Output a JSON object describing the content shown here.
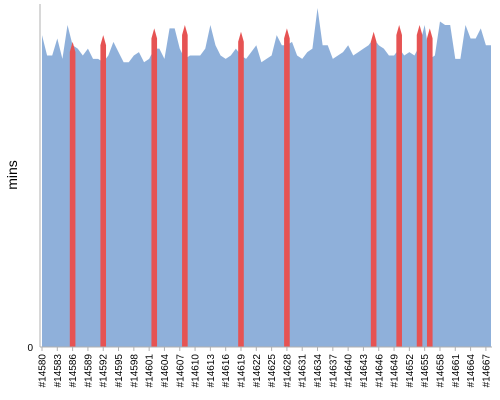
{
  "chart_data": {
    "type": "area",
    "title": "",
    "xlabel": "",
    "ylabel": "mins",
    "ylim": [
      0,
      100
    ],
    "y_ticks": [
      "0"
    ],
    "grid": false,
    "legend": "none",
    "x_first": 14580,
    "x_last": 14668,
    "x_tick_labels": [
      "#14580",
      "#14583",
      "#14586",
      "#14589",
      "#14592",
      "#14595",
      "#14598",
      "#14601",
      "#14604",
      "#14607",
      "#14610",
      "#14613",
      "#14616",
      "#14619",
      "#14622",
      "#14625",
      "#14628",
      "#14631",
      "#14634",
      "#14637",
      "#14640",
      "#14643",
      "#14646",
      "#14649",
      "#14652",
      "#14655",
      "#14658",
      "#14661",
      "#14664",
      "#14667"
    ],
    "series": [
      {
        "color": "#8fb0da",
        "x": [
          14580,
          14581,
          14582,
          14583,
          14584,
          14585,
          14586,
          14587,
          14588,
          14589,
          14590,
          14591,
          14592,
          14593,
          14594,
          14595,
          14596,
          14597,
          14598,
          14599,
          14600,
          14601,
          14602,
          14603,
          14604,
          14605,
          14606,
          14607,
          14608,
          14609,
          14610,
          14611,
          14612,
          14613,
          14614,
          14615,
          14616,
          14617,
          14618,
          14619,
          14620,
          14621,
          14622,
          14623,
          14624,
          14625,
          14626,
          14627,
          14628,
          14629,
          14630,
          14631,
          14632,
          14633,
          14634,
          14635,
          14636,
          14637,
          14638,
          14639,
          14640,
          14641,
          14642,
          14643,
          14644,
          14645,
          14646,
          14647,
          14648,
          14649,
          14650,
          14651,
          14652,
          14653,
          14654,
          14655,
          14656,
          14657,
          14658,
          14659,
          14660,
          14661,
          14662,
          14663,
          14664,
          14665,
          14666,
          14667,
          14668
        ],
        "values": [
          92,
          86,
          86,
          91,
          85,
          95,
          89,
          88,
          86,
          88,
          85,
          85,
          84,
          86,
          90,
          87,
          84,
          84,
          86,
          87,
          84,
          85,
          88,
          88,
          85,
          94,
          94,
          88,
          85,
          86,
          86,
          86,
          88,
          95,
          89,
          86,
          85,
          86,
          88,
          86,
          85,
          87,
          89,
          84,
          85,
          86,
          92,
          89,
          89,
          90,
          86,
          85,
          87,
          88,
          100,
          89,
          89,
          85,
          86,
          87,
          89,
          86,
          87,
          88,
          89,
          91,
          89,
          88,
          86,
          86,
          88,
          86,
          87,
          86,
          89,
          95,
          85,
          86,
          96,
          95,
          95,
          85,
          85,
          95,
          91,
          91,
          94,
          89,
          89
        ]
      }
    ],
    "highlights": [
      {
        "color": "#e65353",
        "x": 14586,
        "value": 90
      },
      {
        "color": "#e65353",
        "x": 14592,
        "value": 92
      },
      {
        "color": "#e65353",
        "x": 14602,
        "value": 94
      },
      {
        "color": "#e65353",
        "x": 14608,
        "value": 95
      },
      {
        "color": "#e65353",
        "x": 14619,
        "value": 93
      },
      {
        "color": "#e65353",
        "x": 14628,
        "value": 94
      },
      {
        "color": "#e65353",
        "x": 14645,
        "value": 93
      },
      {
        "color": "#e65353",
        "x": 14650,
        "value": 95
      },
      {
        "color": "#e65353",
        "x": 14654,
        "value": 95
      },
      {
        "color": "#e65353",
        "x": 14656,
        "value": 94
      }
    ]
  }
}
